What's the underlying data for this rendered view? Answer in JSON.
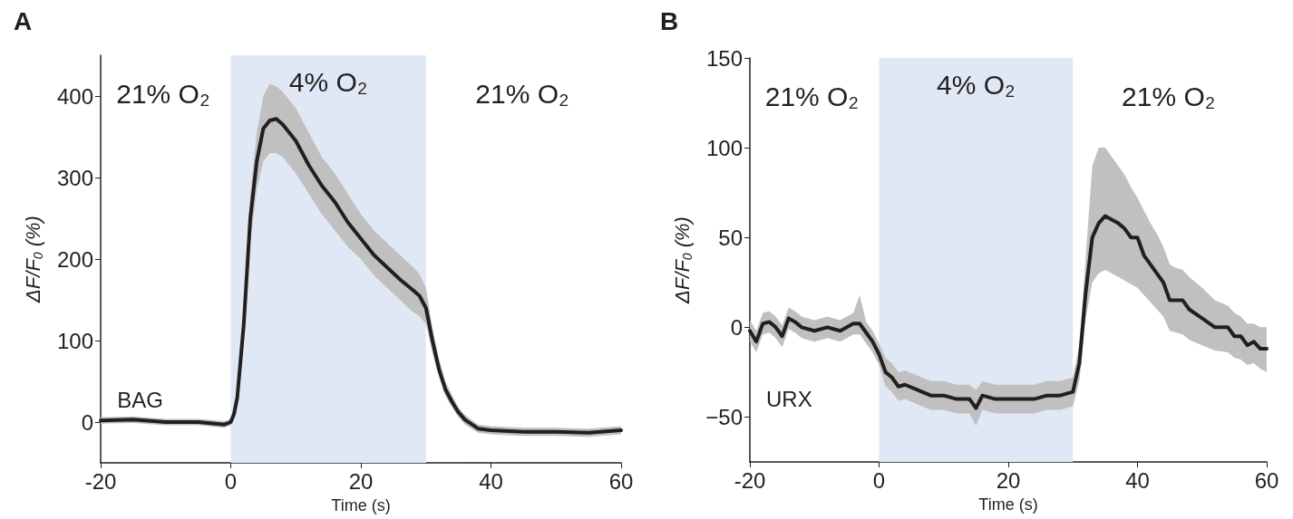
{
  "chart_data": [
    {
      "type": "line",
      "title": "A",
      "xlabel": "Time (s)",
      "ylabel": "ΔF/F$_{0}$ (%)",
      "xlim": [
        -20,
        60
      ],
      "xticks": [
        -20,
        0,
        20,
        40,
        60
      ],
      "ylim": [
        -50,
        450
      ],
      "yticks": [
        0,
        100,
        200,
        300,
        400
      ],
      "grid": false,
      "marker": "none",
      "line_style": "solid",
      "bands": [
        {
          "axis": "x",
          "from": 0,
          "to": 30,
          "label": "4% O₂",
          "color": "#dfe8f4"
        }
      ],
      "annotations": [
        "21% O₂",
        "21% O₂",
        "BAG"
      ],
      "series": [
        {
          "color": "#231f20",
          "x": [
            -20,
            -15,
            -10,
            -5,
            -1,
            0,
            0.5,
            1,
            2,
            3,
            4,
            5,
            6,
            7,
            8,
            10,
            12,
            14,
            16,
            18,
            20,
            22,
            24,
            26,
            28,
            29,
            30,
            31,
            32,
            33,
            34,
            35,
            36,
            38,
            40,
            45,
            50,
            55,
            60
          ],
          "values": [
            2,
            3,
            0,
            0,
            -3,
            0,
            10,
            30,
            120,
            250,
            320,
            360,
            370,
            372,
            365,
            345,
            315,
            290,
            270,
            245,
            225,
            205,
            190,
            175,
            162,
            155,
            140,
            100,
            65,
            40,
            25,
            12,
            3,
            -8,
            -10,
            -12,
            -12,
            -13,
            -10
          ],
          "lower": [
            -2,
            -1,
            -4,
            -4,
            -7,
            -4,
            5,
            22,
            105,
            220,
            285,
            320,
            330,
            330,
            325,
            305,
            280,
            255,
            235,
            215,
            200,
            180,
            165,
            150,
            135,
            130,
            120,
            85,
            55,
            32,
            18,
            6,
            -3,
            -13,
            -15,
            -17,
            -17,
            -18,
            -15
          ],
          "upper": [
            6,
            7,
            4,
            4,
            1,
            4,
            15,
            38,
            135,
            280,
            355,
            400,
            415,
            412,
            405,
            385,
            355,
            325,
            305,
            280,
            255,
            235,
            220,
            205,
            190,
            182,
            165,
            115,
            78,
            50,
            33,
            18,
            9,
            -3,
            -5,
            -7,
            -7,
            -8,
            -5
          ]
        }
      ]
    },
    {
      "type": "line",
      "title": "B",
      "xlabel": "Time (s)",
      "ylabel": "ΔF/F$_{0}$ (%)",
      "xlim": [
        -20,
        60
      ],
      "xticks": [
        -20,
        0,
        20,
        40,
        60
      ],
      "ylim": [
        -75,
        150
      ],
      "yticks": [
        {
          "value": -50,
          "label": "−50"
        },
        0,
        50,
        100,
        150
      ],
      "grid": false,
      "marker": "none",
      "line_style": "solid",
      "bands": [
        {
          "axis": "x",
          "from": 0,
          "to": 30,
          "label": "4% O₂",
          "color": "#dfe8f4"
        }
      ],
      "annotations": [
        "21% O₂",
        "21% O₂",
        "URX"
      ],
      "series": [
        {
          "color": "#231f20",
          "x": [
            -20,
            -19,
            -18,
            -17,
            -16,
            -15,
            -14,
            -13,
            -12,
            -10,
            -8,
            -6,
            -4,
            -3,
            -2,
            -1,
            0,
            1,
            2,
            3,
            4,
            6,
            8,
            10,
            12,
            14,
            15,
            16,
            18,
            20,
            22,
            24,
            26,
            28,
            30,
            31,
            32,
            33,
            34,
            35,
            36,
            37,
            38,
            39,
            40,
            41,
            42,
            43,
            44,
            45,
            46,
            47,
            48,
            50,
            52,
            54,
            55,
            56,
            57,
            58,
            59,
            60
          ],
          "values": [
            -2,
            -8,
            2,
            3,
            0,
            -5,
            5,
            3,
            0,
            -2,
            0,
            -2,
            2,
            2,
            -3,
            -8,
            -15,
            -25,
            -28,
            -33,
            -32,
            -35,
            -38,
            -38,
            -40,
            -40,
            -45,
            -38,
            -40,
            -40,
            -40,
            -40,
            -38,
            -38,
            -36,
            -20,
            20,
            50,
            58,
            62,
            60,
            58,
            55,
            50,
            50,
            40,
            35,
            30,
            25,
            15,
            15,
            15,
            10,
            5,
            0,
            0,
            -5,
            -5,
            -10,
            -8,
            -12,
            -12
          ],
          "lower": [
            -8,
            -14,
            -4,
            -3,
            -6,
            -11,
            -1,
            -3,
            -6,
            -8,
            -6,
            -8,
            -4,
            -4,
            -9,
            -14,
            -21,
            -33,
            -36,
            -41,
            -40,
            -43,
            -46,
            -46,
            -48,
            -48,
            -55,
            -46,
            -48,
            -48,
            -48,
            -48,
            -46,
            -46,
            -44,
            -30,
            5,
            25,
            30,
            32,
            30,
            28,
            26,
            24,
            22,
            18,
            14,
            10,
            6,
            -2,
            -3,
            -4,
            -7,
            -10,
            -13,
            -14,
            -17,
            -18,
            -21,
            -20,
            -23,
            -25
          ],
          "upper": [
            4,
            -2,
            8,
            9,
            6,
            1,
            11,
            9,
            6,
            4,
            6,
            4,
            8,
            18,
            3,
            -2,
            -9,
            -17,
            -20,
            -25,
            -24,
            -27,
            -30,
            -30,
            -32,
            -32,
            -35,
            -30,
            -32,
            -32,
            -32,
            -32,
            -30,
            -30,
            -28,
            -10,
            40,
            90,
            100,
            100,
            95,
            90,
            85,
            78,
            72,
            65,
            58,
            52,
            45,
            35,
            33,
            32,
            28,
            22,
            15,
            12,
            8,
            6,
            2,
            2,
            0,
            0
          ]
        }
      ]
    }
  ]
}
